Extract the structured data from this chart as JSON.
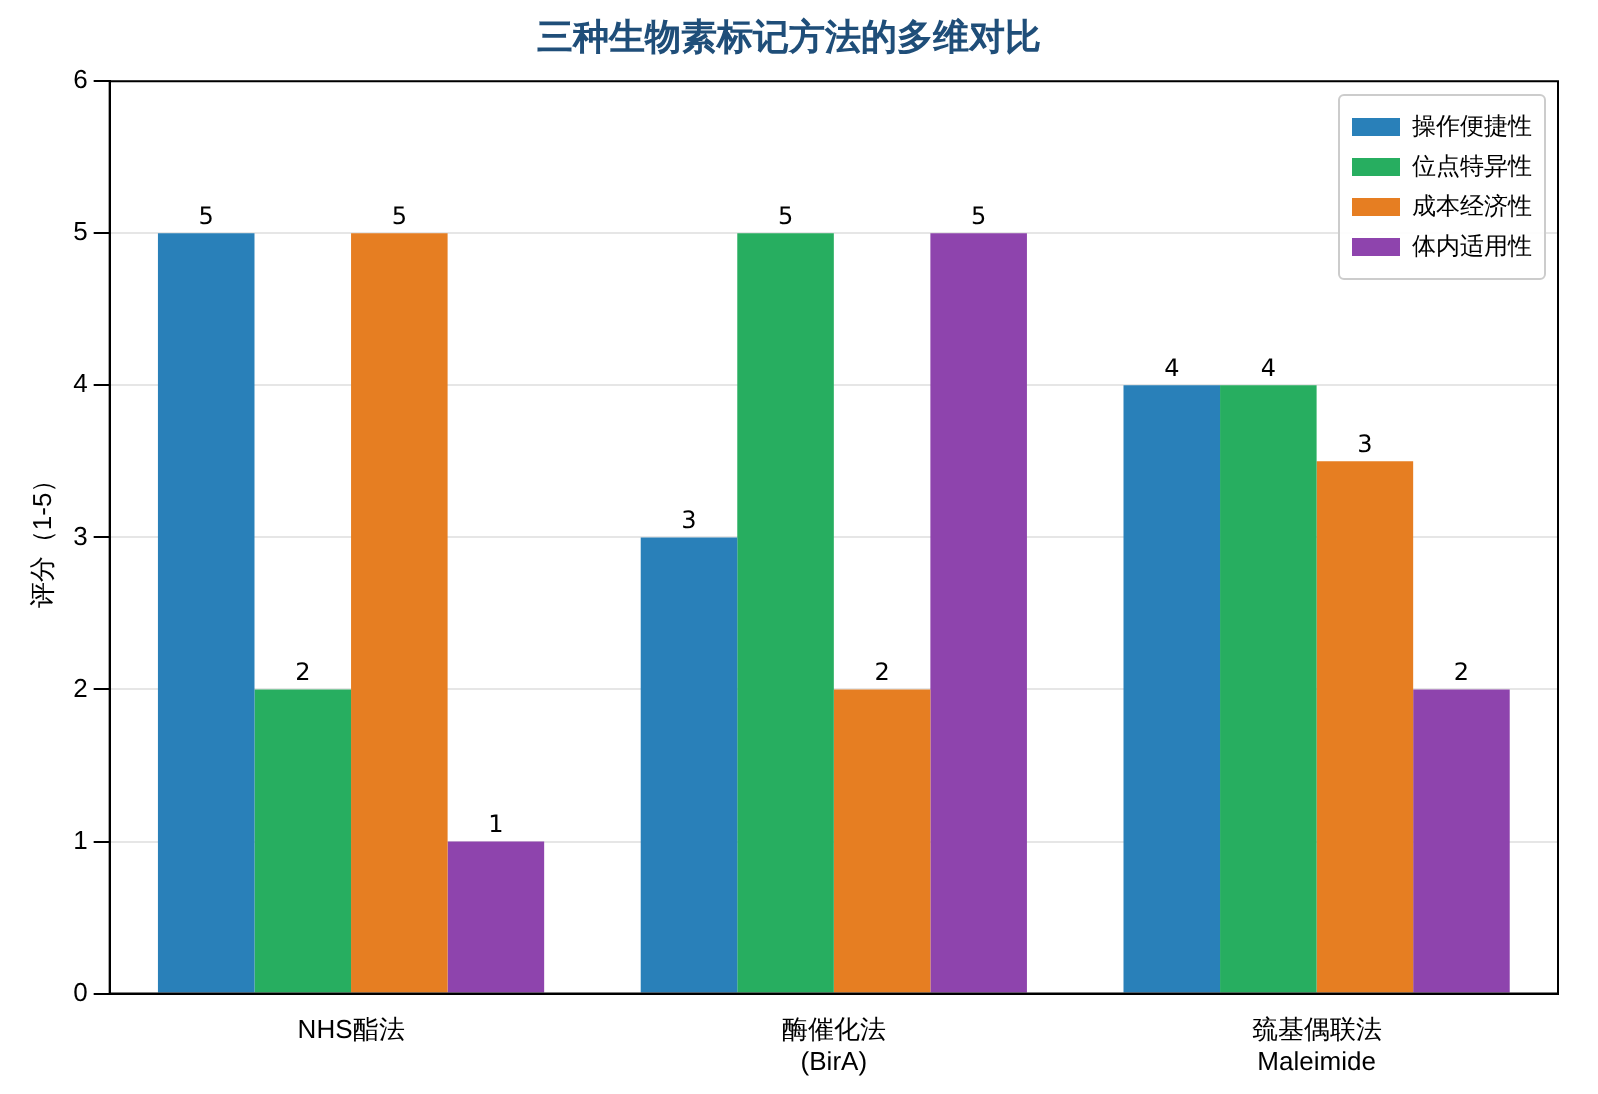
{
  "chart_data": {
    "type": "bar",
    "title": "三种生物素标记方法的多维对比",
    "ylabel": "评分（1-5）",
    "categories": [
      "NHS酯法",
      "酶催化法\n(BirA)",
      "巯基偶联法\nMaleimide"
    ],
    "series": [
      {
        "name": "操作便捷性",
        "color": "#2980b9",
        "values": [
          5,
          3,
          4
        ],
        "value_labels": [
          "5",
          "3",
          "4"
        ]
      },
      {
        "name": "位点特异性",
        "color": "#27ae60",
        "values": [
          2,
          5,
          4
        ],
        "value_labels": [
          "2",
          "5",
          "4"
        ]
      },
      {
        "name": "成本经济性",
        "color": "#e67e22",
        "values": [
          5,
          2,
          3.5
        ],
        "value_labels": [
          "5",
          "2",
          "3"
        ]
      },
      {
        "name": "体内适用性",
        "color": "#8e44ad",
        "values": [
          1,
          5,
          2
        ],
        "value_labels": [
          "1",
          "5",
          "2"
        ]
      }
    ],
    "ylim": [
      0,
      6
    ],
    "yticks": [
      0,
      1,
      2,
      3,
      4,
      5,
      6
    ],
    "grid": "y",
    "legend": "top right"
  }
}
